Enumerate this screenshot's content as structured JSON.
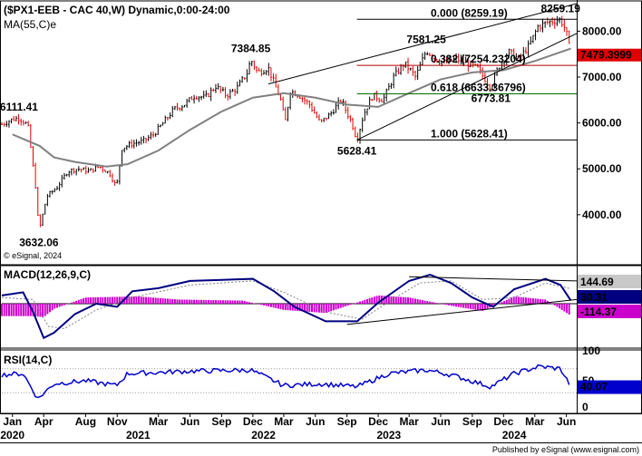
{
  "chart_data": [
    {
      "type": "candlestick",
      "title": "($PX1-EEB - CAC 40,W) Dynamic,0:00-24:00",
      "overlay_label": "MA(55,C)e",
      "copyright": "© eSignal, 2024",
      "footer": "Published by eSignal (www.esignal.com)",
      "colors": {
        "up": "#000000",
        "down": "#e00000",
        "ma": "#808080",
        "fib0": "#000000",
        "fib382": "#b00000",
        "fib618": "#007000",
        "fib1": "#000000"
      },
      "y_ticks": [
        4000,
        5000,
        6000,
        7000,
        8000
      ],
      "y_tick_labels": [
        "4000.00",
        "5000.00",
        "6000.00",
        "7000.00",
        "8000.00"
      ],
      "ylim": [
        2950,
        8600
      ],
      "price_series": [
        [
          "2019-12-01",
          5970
        ],
        [
          "2020-01-01",
          6080
        ],
        [
          "2020-01-20",
          6111.41
        ],
        [
          "2020-02-15",
          5950
        ],
        [
          "2020-03-10",
          4500
        ],
        [
          "2020-03-18",
          3632.06
        ],
        [
          "2020-04-10",
          4400
        ],
        [
          "2020-05-10",
          4600
        ],
        [
          "2020-06-10",
          4950
        ],
        [
          "2020-07-10",
          5000
        ],
        [
          "2020-08-10",
          4950
        ],
        [
          "2020-09-10",
          5050
        ],
        [
          "2020-10-10",
          4900
        ],
        [
          "2020-10-30",
          4600
        ],
        [
          "2020-11-15",
          5450
        ],
        [
          "2020-12-15",
          5550
        ],
        [
          "2021-01-15",
          5600
        ],
        [
          "2021-02-15",
          5750
        ],
        [
          "2021-03-15",
          6000
        ],
        [
          "2021-04-15",
          6300
        ],
        [
          "2021-05-15",
          6400
        ],
        [
          "2021-06-15",
          6600
        ],
        [
          "2021-07-15",
          6550
        ],
        [
          "2021-08-15",
          6800
        ],
        [
          "2021-09-15",
          6600
        ],
        [
          "2021-10-15",
          6750
        ],
        [
          "2021-11-15",
          7100
        ],
        [
          "2021-11-25",
          7384.85
        ],
        [
          "2021-12-15",
          7100
        ],
        [
          "2022-01-15",
          7200
        ],
        [
          "2022-02-20",
          6500
        ],
        [
          "2022-03-05",
          6000
        ],
        [
          "2022-03-20",
          6700
        ],
        [
          "2022-04-15",
          6600
        ],
        [
          "2022-05-15",
          6400
        ],
        [
          "2022-06-15",
          6000
        ],
        [
          "2022-07-15",
          6200
        ],
        [
          "2022-08-15",
          6500
        ],
        [
          "2022-09-15",
          6000
        ],
        [
          "2022-09-30",
          5628.41
        ],
        [
          "2022-10-20",
          6200
        ],
        [
          "2022-11-15",
          6600
        ],
        [
          "2022-12-15",
          6500
        ],
        [
          "2023-01-15",
          7000
        ],
        [
          "2023-02-15",
          7300
        ],
        [
          "2023-03-10",
          7100
        ],
        [
          "2023-03-20",
          7000
        ],
        [
          "2023-04-20",
          7581.25
        ],
        [
          "2023-05-15",
          7400
        ],
        [
          "2023-06-15",
          7300
        ],
        [
          "2023-07-15",
          7400
        ],
        [
          "2023-08-15",
          7300
        ],
        [
          "2023-09-15",
          7200
        ],
        [
          "2023-10-25",
          6773.81
        ],
        [
          "2023-11-15",
          7200
        ],
        [
          "2023-12-15",
          7550
        ],
        [
          "2024-01-15",
          7400
        ],
        [
          "2024-02-15",
          7700
        ],
        [
          "2024-03-10",
          8100
        ],
        [
          "2024-04-10",
          8200
        ],
        [
          "2024-05-15",
          8259.19
        ],
        [
          "2024-05-31",
          8000
        ],
        [
          "2024-06-14",
          7479.4
        ]
      ],
      "ma_series": [
        [
          "2020-01-01",
          5750
        ],
        [
          "2020-03-20",
          5500
        ],
        [
          "2020-05-01",
          5250
        ],
        [
          "2020-07-01",
          5150
        ],
        [
          "2020-10-01",
          5050
        ],
        [
          "2020-12-01",
          5100
        ],
        [
          "2021-03-01",
          5400
        ],
        [
          "2021-06-01",
          5850
        ],
        [
          "2021-09-01",
          6250
        ],
        [
          "2021-12-01",
          6550
        ],
        [
          "2022-03-01",
          6650
        ],
        [
          "2022-06-01",
          6550
        ],
        [
          "2022-09-01",
          6400
        ],
        [
          "2022-12-01",
          6350
        ],
        [
          "2023-03-01",
          6650
        ],
        [
          "2023-06-01",
          6950
        ],
        [
          "2023-09-01",
          7100
        ],
        [
          "2023-12-01",
          7150
        ],
        [
          "2024-03-01",
          7350
        ],
        [
          "2024-06-14",
          7620
        ]
      ],
      "peak_labels": [
        {
          "date": "2020-01-20",
          "value": 6111.41,
          "text": "6111.41",
          "pos": "above"
        },
        {
          "date": "2020-03-18",
          "value": 3632.06,
          "text": "3632.06",
          "pos": "below"
        },
        {
          "date": "2021-11-25",
          "value": 7384.85,
          "text": "7384.85",
          "pos": "above"
        },
        {
          "date": "2022-09-30",
          "value": 5628.41,
          "text": "5628.41",
          "pos": "below"
        },
        {
          "date": "2023-04-20",
          "value": 7581.25,
          "text": "7581.25",
          "pos": "above"
        },
        {
          "date": "2023-10-25",
          "value": 6773.81,
          "text": "6773.81",
          "pos": "below"
        },
        {
          "date": "2024-05-15",
          "value": 8259.19,
          "text": "8259.19",
          "pos": "above"
        }
      ],
      "fib_levels": [
        {
          "value": 8259.19,
          "text": "0.000 (8259.19)",
          "color": "#000000"
        },
        {
          "value": 7254.23204,
          "text": "0.382 (7254.23204)",
          "color": "#b00000"
        },
        {
          "value": 6633.36796,
          "text": "0.618 (6633.36796)",
          "color": "#007000"
        },
        {
          "value": 5628.41,
          "text": "1.000 (5628.41)",
          "color": "#000000"
        }
      ],
      "trendlines": [
        {
          "from": [
            "2022-01-15",
            6850
          ],
          "to": [
            "2024-07-01",
            8600
          ]
        },
        {
          "from": [
            "2022-09-30",
            5628.41
          ],
          "to": [
            "2024-07-01",
            7950
          ]
        }
      ],
      "last_price_label": "7479.3999",
      "last_price_value": 7479.3999
    },
    {
      "type": "line",
      "title": "MACD(12,26,9,C)",
      "series": [
        {
          "name": "MACD",
          "color": "#000080"
        },
        {
          "name": "Signal",
          "color": "#808080"
        },
        {
          "name": "Histogram",
          "color": "#cc00cc"
        }
      ],
      "macd_line": [
        [
          "2019-12-01",
          80
        ],
        [
          "2020-02-01",
          110
        ],
        [
          "2020-03-01",
          -80
        ],
        [
          "2020-04-01",
          -330
        ],
        [
          "2020-05-01",
          -280
        ],
        [
          "2020-07-01",
          -100
        ],
        [
          "2020-09-01",
          0
        ],
        [
          "2020-11-01",
          -30
        ],
        [
          "2020-12-15",
          120
        ],
        [
          "2021-03-01",
          150
        ],
        [
          "2021-06-01",
          220
        ],
        [
          "2021-09-01",
          230
        ],
        [
          "2021-12-01",
          240
        ],
        [
          "2022-02-01",
          120
        ],
        [
          "2022-04-01",
          -30
        ],
        [
          "2022-07-01",
          -170
        ],
        [
          "2022-10-01",
          -170
        ],
        [
          "2022-12-01",
          10
        ],
        [
          "2023-03-01",
          220
        ],
        [
          "2023-05-01",
          280
        ],
        [
          "2023-07-01",
          200
        ],
        [
          "2023-09-01",
          60
        ],
        [
          "2023-11-01",
          -30
        ],
        [
          "2024-01-01",
          140
        ],
        [
          "2024-04-01",
          240
        ],
        [
          "2024-05-15",
          180
        ],
        [
          "2024-06-14",
          30.31
        ]
      ],
      "signal_line": [
        [
          "2019-12-01",
          60
        ],
        [
          "2020-03-01",
          40
        ],
        [
          "2020-04-15",
          -220
        ],
        [
          "2020-06-01",
          -240
        ],
        [
          "2020-09-01",
          -60
        ],
        [
          "2020-12-15",
          60
        ],
        [
          "2021-06-01",
          180
        ],
        [
          "2021-12-01",
          220
        ],
        [
          "2022-03-01",
          110
        ],
        [
          "2022-07-01",
          -80
        ],
        [
          "2022-10-15",
          -150
        ],
        [
          "2023-01-01",
          20
        ],
        [
          "2023-04-01",
          200
        ],
        [
          "2023-07-01",
          220
        ],
        [
          "2023-10-01",
          40
        ],
        [
          "2024-01-01",
          60
        ],
        [
          "2024-04-01",
          200
        ],
        [
          "2024-06-14",
          144.69
        ]
      ],
      "histogram": [
        [
          "2020-03-01",
          -120
        ],
        [
          "2020-04-01",
          -130
        ],
        [
          "2020-05-01",
          -50
        ],
        [
          "2020-08-01",
          60
        ],
        [
          "2021-01-01",
          70
        ],
        [
          "2021-05-01",
          40
        ],
        [
          "2021-11-01",
          30
        ],
        [
          "2022-03-01",
          -60
        ],
        [
          "2022-07-01",
          -90
        ],
        [
          "2022-12-01",
          80
        ],
        [
          "2023-03-01",
          60
        ],
        [
          "2023-07-01",
          -20
        ],
        [
          "2023-10-01",
          -70
        ],
        [
          "2024-01-01",
          70
        ],
        [
          "2024-04-01",
          40
        ],
        [
          "2024-06-14",
          -114.37
        ]
      ],
      "value_labels": [
        {
          "text": "144.69",
          "value": 144.69,
          "bg": "#c8c8c8",
          "fg": "#000000"
        },
        {
          "text": "30.31",
          "value": 30.31,
          "bg": "#000080",
          "fg": "#ffffff"
        },
        {
          "text": "-114.37",
          "value": -114.37,
          "bg": "#cc00cc",
          "fg": "#ffffff"
        }
      ],
      "ylim": [
        -420,
        350
      ],
      "trendlines": [
        {
          "from": [
            "2022-09-01",
            -200
          ],
          "to": [
            "2024-07-01",
            40
          ]
        },
        {
          "from": [
            "2023-03-01",
            260
          ],
          "to": [
            "2024-07-01",
            220
          ]
        }
      ]
    },
    {
      "type": "line",
      "title": "RSI(14,C)",
      "series": [
        {
          "name": "RSI",
          "color": "#0000cc"
        }
      ],
      "rsi_line": [
        [
          "2019-12-01",
          60
        ],
        [
          "2020-02-01",
          62
        ],
        [
          "2020-03-15",
          20
        ],
        [
          "2020-05-01",
          45
        ],
        [
          "2020-08-01",
          50
        ],
        [
          "2020-10-30",
          42
        ],
        [
          "2020-12-01",
          62
        ],
        [
          "2021-06-01",
          66
        ],
        [
          "2021-11-25",
          68
        ],
        [
          "2022-03-01",
          42
        ],
        [
          "2022-06-15",
          45
        ],
        [
          "2022-09-30",
          40
        ],
        [
          "2023-01-01",
          62
        ],
        [
          "2023-04-20",
          68
        ],
        [
          "2023-07-01",
          60
        ],
        [
          "2023-10-25",
          40
        ],
        [
          "2024-01-01",
          62
        ],
        [
          "2024-03-15",
          74
        ],
        [
          "2024-05-15",
          70
        ],
        [
          "2024-06-14",
          40.07
        ]
      ],
      "y_ticks": [
        50,
        100
      ],
      "y_tick_labels": [
        "50",
        "100"
      ],
      "ylim": [
        0,
        100
      ],
      "last_label": "40.07"
    }
  ],
  "x_axis": {
    "start": "2019-12-01",
    "end": "2024-07-01",
    "month_ticks": [
      {
        "date": "2020-01-01",
        "text": "Jan"
      },
      {
        "date": "2020-04-01",
        "text": "Apr"
      },
      {
        "date": "2020-08-01",
        "text": "Aug"
      },
      {
        "date": "2020-11-01",
        "text": "Nov"
      },
      {
        "date": "2021-03-01",
        "text": "Mar"
      },
      {
        "date": "2021-06-01",
        "text": "Jun"
      },
      {
        "date": "2021-09-01",
        "text": "Sep"
      },
      {
        "date": "2021-12-01",
        "text": "Dec"
      },
      {
        "date": "2022-03-01",
        "text": "Mar"
      },
      {
        "date": "2022-06-01",
        "text": "Jun"
      },
      {
        "date": "2022-09-01",
        "text": "Sep"
      },
      {
        "date": "2022-12-01",
        "text": "Dec"
      },
      {
        "date": "2023-03-01",
        "text": "Mar"
      },
      {
        "date": "2023-06-01",
        "text": "Jun"
      },
      {
        "date": "2023-09-01",
        "text": "Sep"
      },
      {
        "date": "2023-12-01",
        "text": "Dec"
      },
      {
        "date": "2024-03-01",
        "text": "Mar"
      },
      {
        "date": "2024-06-01",
        "text": "Jun"
      }
    ],
    "year_ticks": [
      {
        "date": "2020-01-01",
        "text": "2020"
      },
      {
        "date": "2021-01-01",
        "text": "2021"
      },
      {
        "date": "2022-01-01",
        "text": "2022"
      },
      {
        "date": "2023-01-01",
        "text": "2023"
      },
      {
        "date": "2024-01-01",
        "text": "2024"
      }
    ]
  }
}
